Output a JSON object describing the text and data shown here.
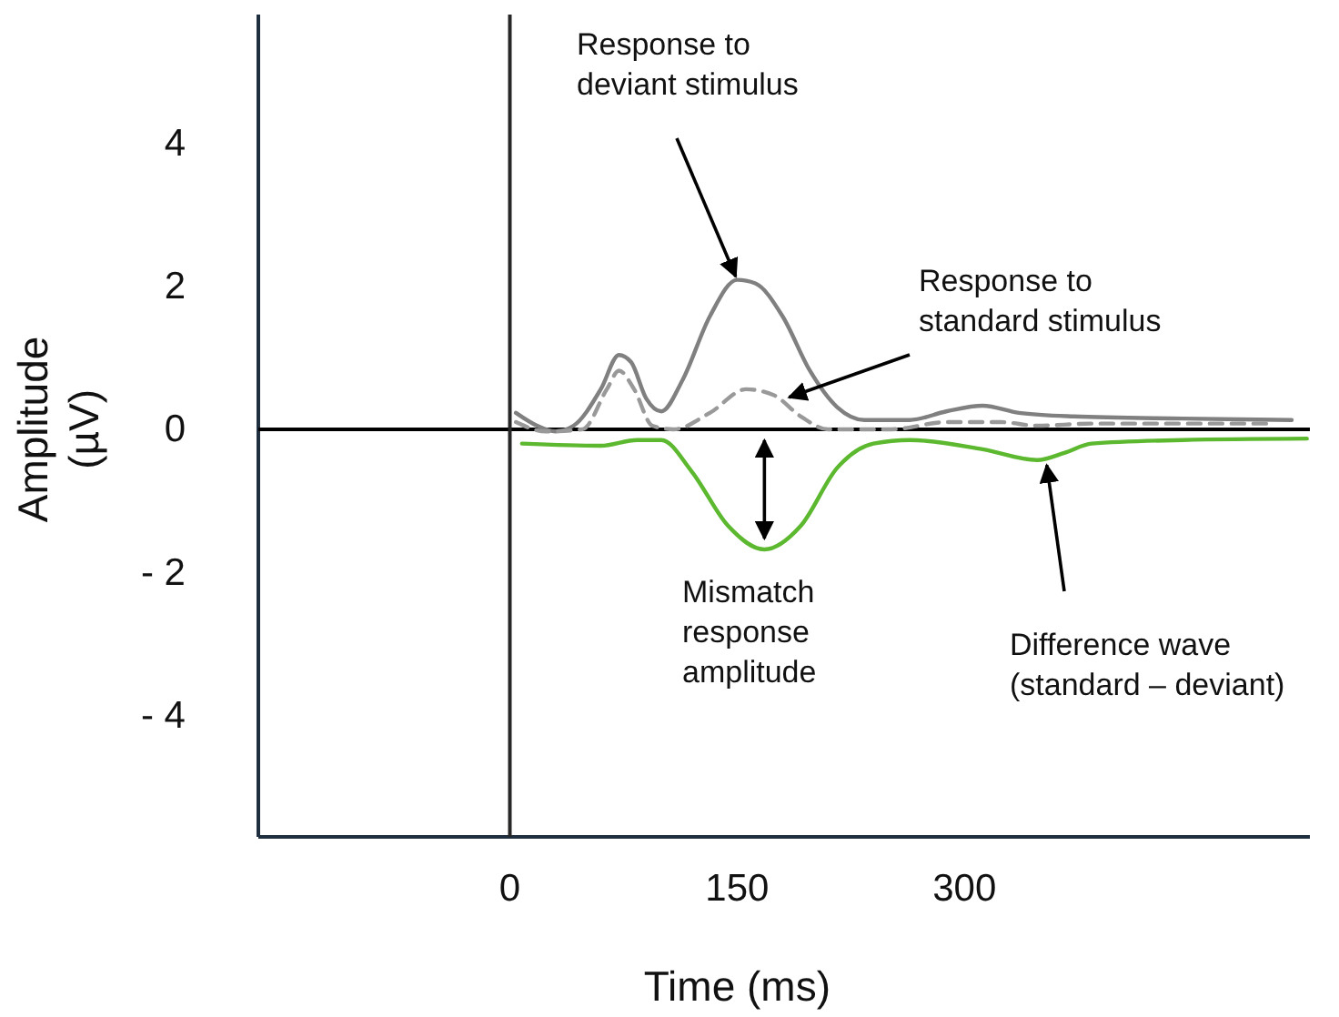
{
  "chart_data": {
    "type": "line",
    "xlabel": "Time (ms)",
    "ylabel": "Amplitude\n(µV)",
    "xlim": [
      -166,
      528
    ],
    "ylim": [
      -5.7,
      5.8
    ],
    "xticks": [
      0,
      150,
      300
    ],
    "yticks": [
      4,
      2,
      0,
      {
        "value": -2,
        "label": "- 2"
      },
      {
        "value": -4,
        "label": "- 4"
      }
    ],
    "grid": false,
    "series": [
      {
        "color": "#808080",
        "line_style": "solid",
        "x": [
          4,
          18,
          30,
          42,
          60,
          72,
          80,
          90,
          100,
          114,
          132,
          150,
          162,
          180,
          198,
          216,
          234,
          264,
          288,
          312,
          336,
          372,
          444,
          516
        ],
        "values": [
          0.23,
          0.05,
          -0.03,
          0.05,
          0.56,
          1.04,
          0.94,
          0.43,
          0.25,
          0.69,
          1.58,
          2.09,
          2.04,
          1.58,
          0.82,
          0.31,
          0.13,
          0.13,
          0.25,
          0.33,
          0.23,
          0.18,
          0.15,
          0.13
        ]
      },
      {
        "color": "#999999",
        "line_style": "dashed",
        "x": [
          4,
          24,
          48,
          64,
          72,
          82,
          94,
          108,
          132,
          156,
          174,
          192,
          210,
          252,
          288,
          324,
          348,
          384,
          504
        ],
        "values": [
          0.1,
          -0.03,
          0,
          0.56,
          0.82,
          0.56,
          0.05,
          0,
          0.23,
          0.56,
          0.48,
          0.18,
          0,
          0,
          0.1,
          0.1,
          0.05,
          0.08,
          0.08
        ]
      },
      {
        "color": "#5cb82e",
        "line_style": "solid",
        "x": [
          8,
          60,
          84,
          100,
          120,
          144,
          168,
          192,
          216,
          240,
          264,
          312,
          348,
          366,
          384,
          444,
          526
        ],
        "values": [
          -0.2,
          -0.23,
          -0.15,
          -0.15,
          -0.59,
          -1.35,
          -1.68,
          -1.35,
          -0.54,
          -0.2,
          -0.15,
          -0.28,
          -0.43,
          -0.33,
          -0.2,
          -0.15,
          -0.13
        ]
      }
    ],
    "ref_lines": [
      {
        "axis": "y",
        "value": 0,
        "color": "#000000"
      },
      {
        "axis": "x",
        "value": 0,
        "color": "#262626"
      }
    ],
    "annotations": [
      {
        "text": "Response to\ndeviant stimulus",
        "x": 150,
        "y": 2.09
      },
      {
        "text": "Response to\nstandard stimulus",
        "x": 182,
        "y": 0.43
      },
      {
        "text": "Mismatch\nresponse\namplitude",
        "x": 168,
        "y": -1.68
      },
      {
        "text": "Difference wave\n(standard – deviant)",
        "x": 354,
        "y": -0.45
      }
    ]
  }
}
